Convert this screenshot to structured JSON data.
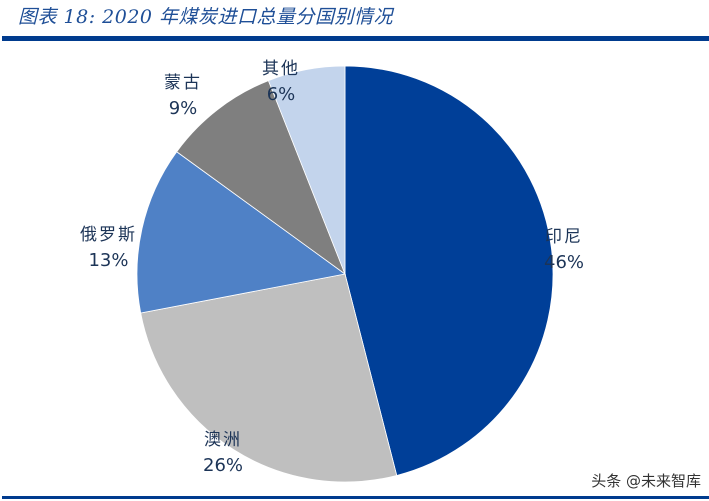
{
  "header": {
    "title": "图表 18:  2020 年煤炭进口总量分国别情况",
    "rule_color": "#003b8e"
  },
  "chart_data": {
    "type": "pie",
    "title": "2020年煤炭进口总量分国别情况",
    "start_angle_deg": 0,
    "direction": "clockwise",
    "slices": [
      {
        "label": "印尼",
        "value": 46,
        "display": "46%",
        "color": "#003f98"
      },
      {
        "label": "澳洲",
        "value": 26,
        "display": "26%",
        "color": "#bfbfbf"
      },
      {
        "label": "俄罗斯",
        "value": 13,
        "display": "13%",
        "color": "#4f81c6"
      },
      {
        "label": "蒙古",
        "value": 9,
        "display": "9%",
        "color": "#7f7f7f"
      },
      {
        "label": "其他",
        "value": 6,
        "display": "6%",
        "color": "#c3d4ec"
      }
    ],
    "legend": "none (data labels outside slices)"
  },
  "labels": {
    "indonesia": {
      "name": "印尼",
      "pct": "46%"
    },
    "australia": {
      "name": "澳洲",
      "pct": "26%"
    },
    "russia": {
      "name": "俄罗斯",
      "pct": "13%"
    },
    "mongolia": {
      "name": "蒙古",
      "pct": "9%"
    },
    "other": {
      "name": "其他",
      "pct": "6%"
    }
  },
  "watermark": "头条 @未来智库"
}
